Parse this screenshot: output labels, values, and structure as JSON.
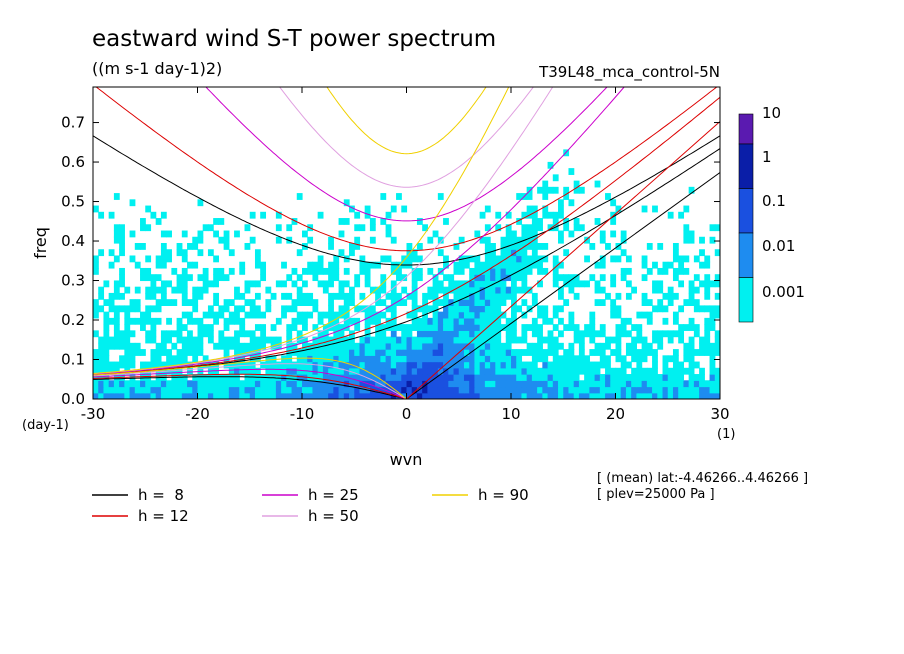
{
  "chart_data": {
    "type": "heatmap",
    "title": "eastward wind S-T power spectrum",
    "subtitle": "((m s-1 day-1)2)",
    "run_label": "T39L48_mca_control-5N",
    "xlabel": "wvn",
    "ylabel": "freq",
    "x_unit": "(1)",
    "y_unit": "(day-1)",
    "xlim": [
      -30,
      30
    ],
    "ylim": [
      0,
      0.79
    ],
    "x_ticks": [
      -30,
      -20,
      -10,
      0,
      10,
      20,
      30
    ],
    "x_tick_labels": [
      "-30",
      "-20",
      "-10",
      "0",
      "10",
      "20",
      "30"
    ],
    "y_ticks": [
      0,
      0.1,
      0.2,
      0.3,
      0.4,
      0.5,
      0.6,
      0.7
    ],
    "y_tick_labels": [
      "0.0",
      "0.1",
      "0.2",
      "0.3",
      "0.4",
      "0.5",
      "0.6",
      "0.7"
    ],
    "colorbar": {
      "labels": [
        "10",
        "1",
        "0.1",
        "0.01",
        "0.001"
      ],
      "colors": [
        "#5a1ab0",
        "#0a1ea8",
        "#1a50e0",
        "#1e8cf0",
        "#00f0f0"
      ]
    },
    "levels": [
      0.001,
      0.01,
      0.1,
      1
    ],
    "level_colors": [
      "#00f0f0",
      "#1e8cf0",
      "#1a50e0",
      "#0a1ea8"
    ],
    "dispersion_curves": [
      {
        "h": 8,
        "label": "h =  8",
        "color": "#000000"
      },
      {
        "h": 12,
        "label": "h = 12",
        "color": "#dd0000"
      },
      {
        "h": 25,
        "label": "h = 25",
        "color": "#cc00cc"
      },
      {
        "h": 50,
        "label": "h = 50",
        "color": "#e0a0e0"
      },
      {
        "h": 90,
        "label": "h = 90",
        "color": "#f0d000"
      }
    ],
    "info_lines": [
      "[ (mean) lat:-4.46266..4.46266 ]",
      "[ plev=25000 Pa ]"
    ]
  }
}
